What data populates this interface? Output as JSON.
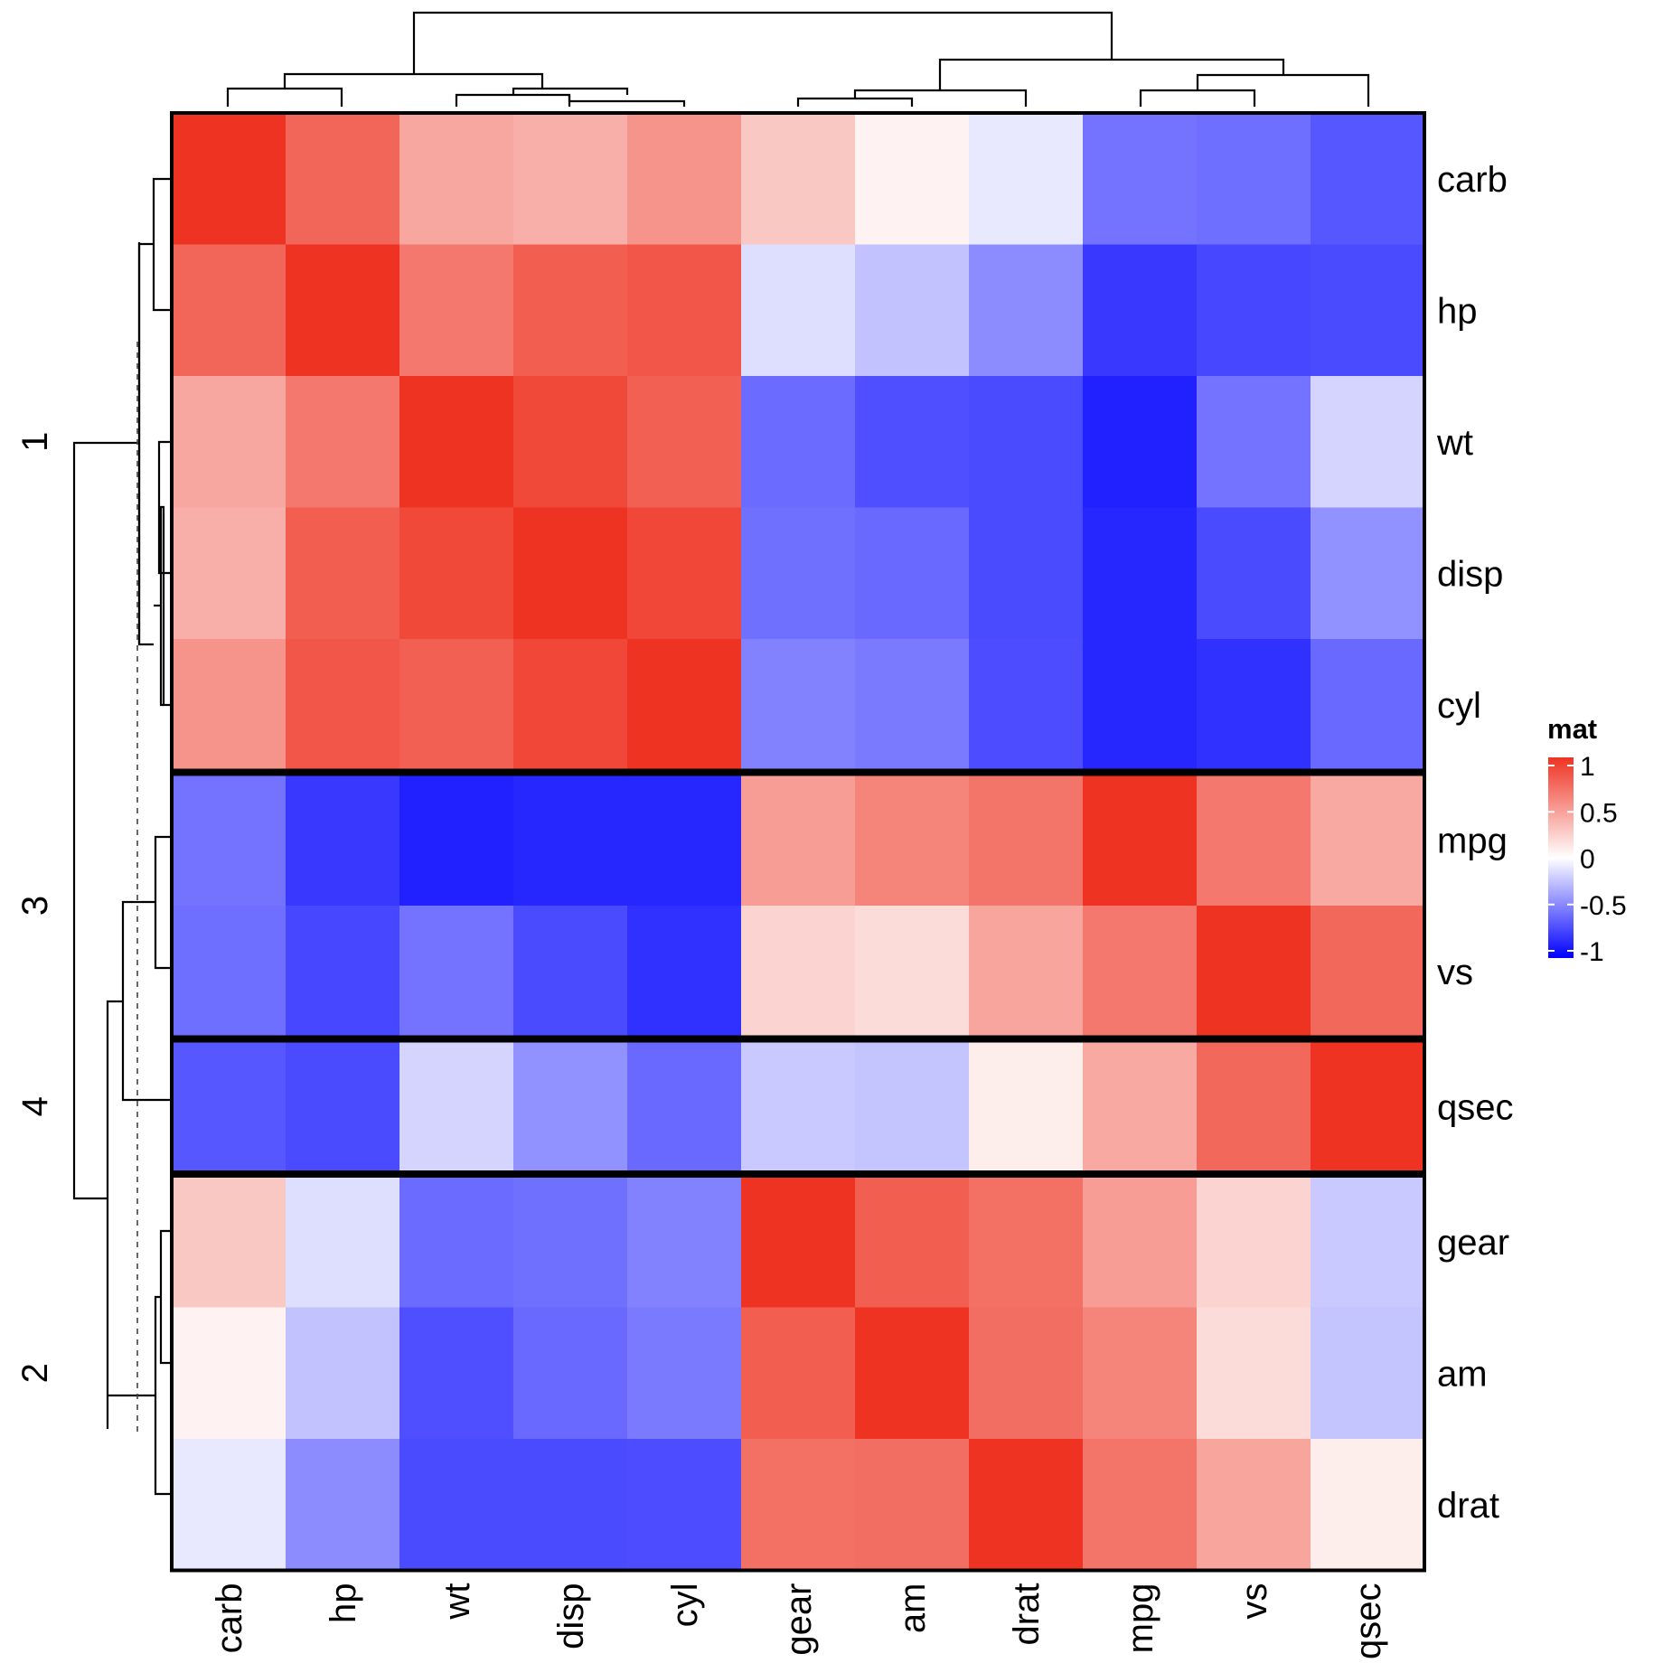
{
  "chart_data": {
    "type": "heatmap",
    "legend_title": "mat",
    "legend_ticks": [
      "1",
      "0.5",
      "0",
      "-0.5",
      "-1"
    ],
    "legend_tick_values": [
      1,
      0.5,
      0,
      -0.5,
      -1
    ],
    "color_scale": {
      "low": "#0000FF",
      "mid": "#FFFFFF",
      "high": "#EE3322",
      "domain": [
        -1,
        0,
        1
      ]
    },
    "columns": [
      "carb",
      "hp",
      "wt",
      "disp",
      "cyl",
      "gear",
      "am",
      "drat",
      "mpg",
      "vs",
      "qsec"
    ],
    "row_groups": [
      {
        "label": "1",
        "rows": [
          "carb",
          "hp",
          "wt",
          "disp",
          "cyl"
        ]
      },
      {
        "label": "3",
        "rows": [
          "mpg",
          "vs"
        ]
      },
      {
        "label": "4",
        "rows": [
          "qsec"
        ]
      },
      {
        "label": "2",
        "rows": [
          "gear",
          "am",
          "drat"
        ]
      }
    ],
    "values": [
      [
        1.0,
        0.75,
        0.43,
        0.39,
        0.53,
        0.27,
        0.06,
        -0.09,
        -0.55,
        -0.57,
        -0.66
      ],
      [
        0.75,
        1.0,
        0.66,
        0.79,
        0.83,
        -0.13,
        -0.24,
        -0.45,
        -0.78,
        -0.72,
        -0.71
      ],
      [
        0.43,
        0.66,
        1.0,
        0.89,
        0.78,
        -0.58,
        -0.69,
        -0.71,
        -0.87,
        -0.55,
        -0.17
      ],
      [
        0.39,
        0.79,
        0.89,
        1.0,
        0.9,
        -0.56,
        -0.59,
        -0.71,
        -0.85,
        -0.71,
        -0.43
      ],
      [
        0.53,
        0.83,
        0.78,
        0.9,
        1.0,
        -0.49,
        -0.52,
        -0.7,
        -0.85,
        -0.81,
        -0.59
      ],
      [
        -0.55,
        -0.78,
        -0.87,
        -0.85,
        -0.85,
        0.48,
        0.6,
        0.68,
        1.0,
        0.66,
        0.42
      ],
      [
        -0.57,
        -0.72,
        -0.55,
        -0.71,
        -0.81,
        0.21,
        0.17,
        0.44,
        0.66,
        1.0,
        0.74
      ],
      [
        -0.66,
        -0.71,
        -0.17,
        -0.43,
        -0.59,
        -0.21,
        -0.23,
        0.09,
        0.42,
        0.74,
        1.0
      ],
      [
        0.27,
        -0.13,
        -0.58,
        -0.56,
        -0.49,
        1.0,
        0.79,
        0.7,
        0.48,
        0.21,
        -0.21
      ],
      [
        0.06,
        -0.24,
        -0.69,
        -0.59,
        -0.52,
        0.79,
        1.0,
        0.71,
        0.6,
        0.17,
        -0.23
      ],
      [
        -0.09,
        -0.45,
        -0.71,
        -0.71,
        -0.7,
        0.7,
        0.71,
        1.0,
        0.68,
        0.44,
        0.09
      ]
    ]
  }
}
